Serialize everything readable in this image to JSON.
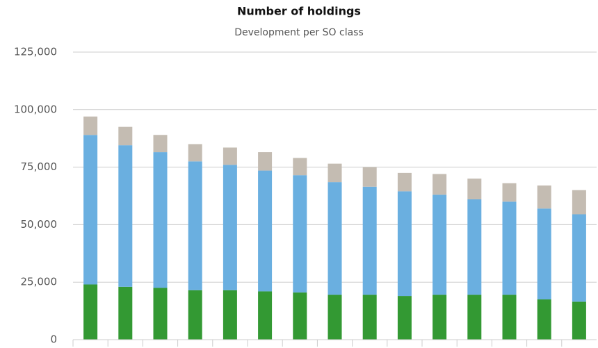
{
  "chart_data": {
    "type": "bar",
    "stacked": true,
    "title": "Number of holdings",
    "subtitle": "Development per SO class",
    "categories": [
      null,
      null,
      null,
      null,
      null,
      null,
      null,
      null,
      null,
      null,
      null,
      null,
      null,
      null,
      null
    ],
    "series": [
      {
        "color": "#339933",
        "values": [
          24000,
          23000,
          22500,
          21500,
          21500,
          21000,
          20500,
          19500,
          19500,
          19000,
          19500,
          19500,
          19500,
          17500,
          16500
        ]
      },
      {
        "color": "#6aafe0",
        "values": [
          65000,
          61500,
          59000,
          56000,
          54500,
          52500,
          51000,
          49000,
          47000,
          45500,
          43500,
          41500,
          40500,
          39500,
          38000
        ]
      },
      {
        "color": "#c4bcb2",
        "values": [
          8000,
          8000,
          7500,
          7500,
          7500,
          8000,
          7500,
          8000,
          8500,
          8000,
          9000,
          9000,
          8000,
          10000,
          10500
        ]
      }
    ],
    "ylim": [
      0,
      125000
    ],
    "yticks": [
      0,
      {
        "value": 25000,
        "label": "25,000"
      },
      {
        "value": 50000,
        "label": "50,000"
      },
      {
        "value": 75000,
        "label": "75,000"
      },
      {
        "value": 100000,
        "label": "100,000"
      },
      {
        "value": 125000,
        "label": "125,000"
      }
    ],
    "grid": true
  }
}
